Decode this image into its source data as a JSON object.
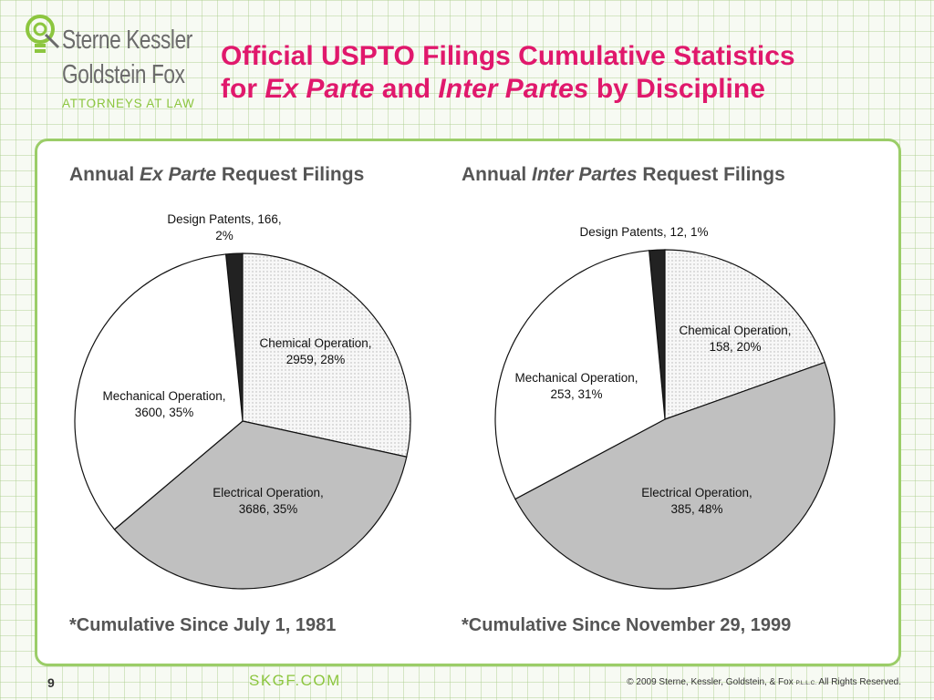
{
  "logo": {
    "line1": "Sterne Kessler",
    "line2": "Goldstein Fox",
    "line3": "ATTORNEYS AT LAW"
  },
  "title": {
    "line1": "Official USPTO Filings Cumulative Statistics",
    "line2_pre": "for ",
    "line2_it1": "Ex Parte",
    "line2_mid": " and ",
    "line2_it2": "Inter Partes",
    "line2_post": " by Discipline"
  },
  "chart_titles": [
    {
      "pre": "Annual ",
      "it": "Ex Parte",
      "post": " Request Filings"
    },
    {
      "pre": "Annual ",
      "it": "Inter Partes",
      "post": " Request Filings"
    }
  ],
  "footnotes": [
    "*Cumulative Since July 1, 1981",
    "*Cumulative Since November 29, 1999"
  ],
  "colors": {
    "title": "#e0186c",
    "accent": "#8cc63f",
    "design": "#222222",
    "chemical": "#efefef",
    "electrical": "#c0c0c0",
    "mechanical": "#ffffff"
  },
  "chart_data": [
    {
      "type": "pie",
      "title": "Annual Ex Parte Request Filings",
      "categories": [
        "Design Patents",
        "Chemical Operation",
        "Electrical Operation",
        "Mechanical Operation"
      ],
      "values": [
        166,
        2959,
        3686,
        3600
      ],
      "labels": [
        [
          "Design Patents, 166,",
          "2%"
        ],
        [
          "Chemical Operation,",
          "2959, 28%"
        ],
        [
          "Electrical Operation,",
          "3686, 35%"
        ],
        [
          "Mechanical Operation,",
          "3600, 35%"
        ]
      ]
    },
    {
      "type": "pie",
      "title": "Annual Inter Partes Request Filings",
      "categories": [
        "Design Patents",
        "Chemical Operation",
        "Electrical Operation",
        "Mechanical Operation"
      ],
      "values": [
        12,
        158,
        385,
        253
      ],
      "labels": [
        [
          "Design Patents, 12, 1%"
        ],
        [
          "Chemical Operation,",
          "158, 20%"
        ],
        [
          "Electrical Operation,",
          "385, 48%"
        ],
        [
          "Mechanical Operation,",
          "253, 31%"
        ]
      ]
    }
  ],
  "footer": {
    "page": "9",
    "url": "SKGF.COM",
    "copyright": "© 2009 Sterne, Kessler, Goldstein, & Fox ",
    "copyright_small": "P.L.L.C.",
    "copyright_end": " All Rights Reserved."
  }
}
